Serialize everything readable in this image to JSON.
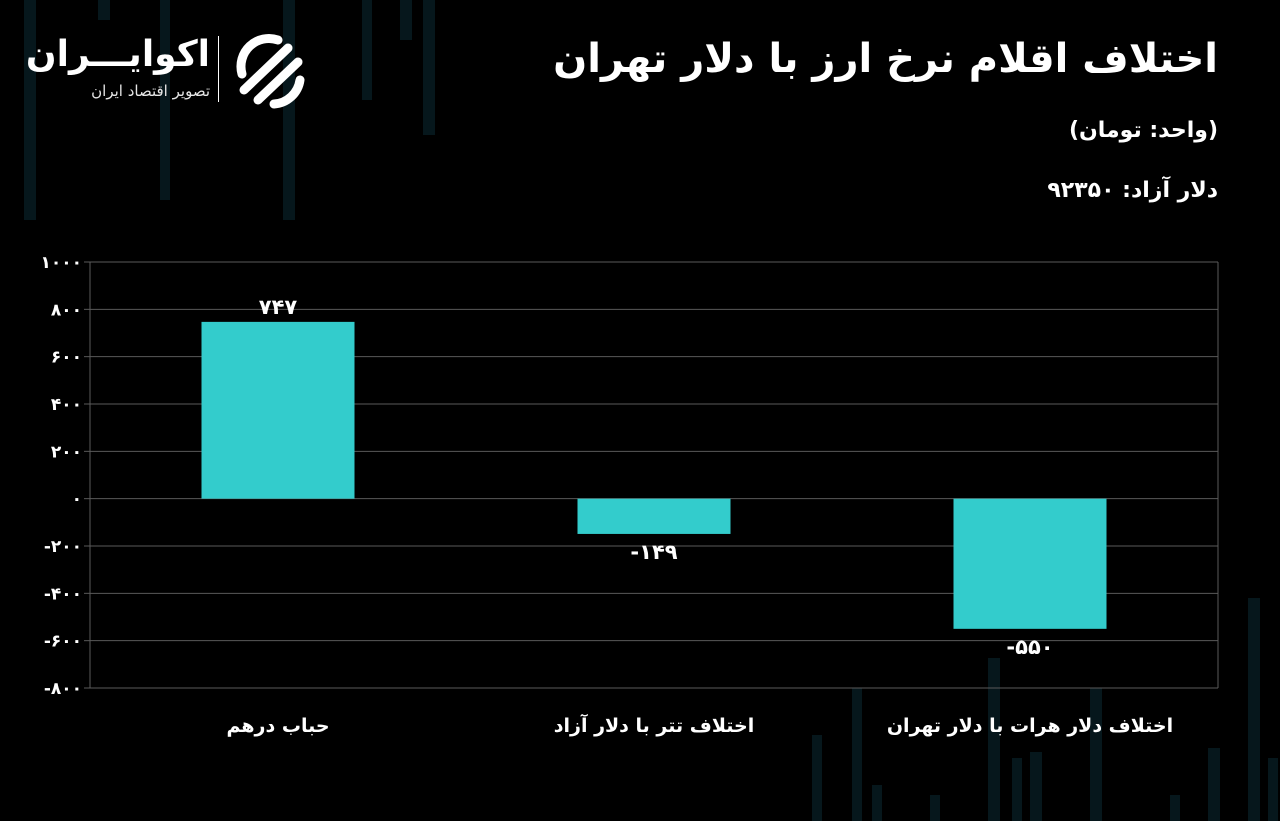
{
  "header": {
    "title": "اختلاف اقلام نرخ ارز با دلار تهران",
    "unit_note": "(واحد: تومان)",
    "free_dollar": "دلار آزاد: ۹۲۳۵۰"
  },
  "logo": {
    "name": "اکوایـــران",
    "tagline": "تصویر اقتصاد ایران",
    "icon": "ecoiran-logo-icon"
  },
  "colors": {
    "background": "#000000",
    "bar": "#33cccc",
    "text": "#ffffff",
    "grid": "#5a5a5a"
  },
  "chart_data": {
    "type": "bar",
    "title": "اختلاف اقلام نرخ ارز با دلار تهران",
    "categories": [
      "حباب درهم",
      "اختلاف تتر با دلار آزاد",
      "اختلاف دلار هرات با دلار تهران"
    ],
    "values": [
      747,
      -149,
      -550
    ],
    "data_labels": [
      "۷۴۷",
      "-۱۴۹",
      "-۵۵۰"
    ],
    "ylim": [
      -800,
      1000
    ],
    "yticks": [
      1000,
      800,
      600,
      400,
      200,
      0,
      -200,
      -400,
      -600,
      -800
    ],
    "ytick_labels": [
      "۱۰۰۰",
      "۸۰۰",
      "۶۰۰",
      "۴۰۰",
      "۲۰۰",
      "۰",
      "-۲۰۰",
      "-۴۰۰",
      "-۶۰۰",
      "-۸۰۰"
    ],
    "grid": true,
    "xlabel": "",
    "ylabel": ""
  }
}
